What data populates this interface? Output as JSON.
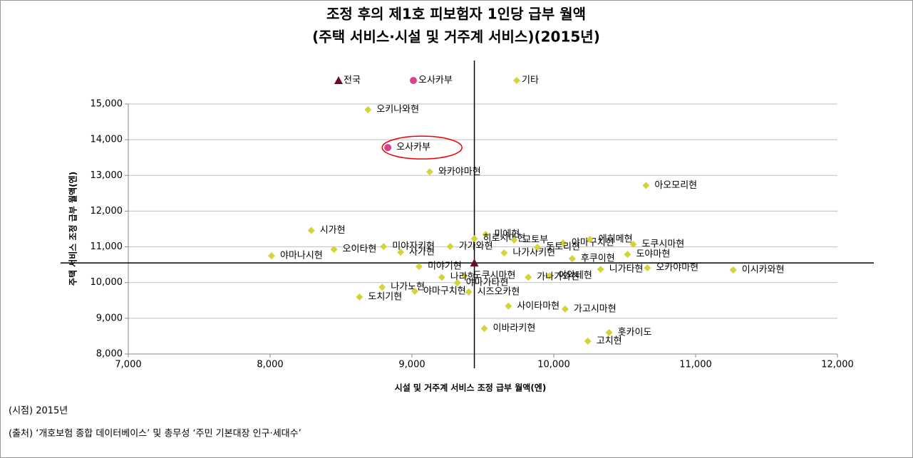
{
  "chart_data": {
    "type": "scatter",
    "title": [
      "조정 후의 제1호 피보험자 1인당 급부 월액",
      "(주택 서비스·시설 및 거주계 서비스)(2015년)"
    ],
    "x_label": "시설 및 거주계 서비스 조정 급부 월액(엔)",
    "y_label": "주택 서비스 조정 급부 월액(엔)",
    "xlim": [
      7000,
      12000
    ],
    "xticks": [
      {
        "value": 7000,
        "label": "7,000"
      },
      {
        "value": 8000,
        "label": "8,000"
      },
      {
        "value": 9000,
        "label": "9,000"
      },
      {
        "value": 10000,
        "label": "10,000"
      },
      {
        "value": 11000,
        "label": "11,000"
      },
      {
        "value": 12000,
        "label": "12,000"
      }
    ],
    "ylim": [
      8000,
      15000
    ],
    "yticks": [
      {
        "value": 8000,
        "label": "8,000"
      },
      {
        "value": 9000,
        "label": "9,000"
      },
      {
        "value": 10000,
        "label": "10,000"
      },
      {
        "value": 11000,
        "label": "11,000"
      },
      {
        "value": 12000,
        "label": "12,000"
      },
      {
        "value": 13000,
        "label": "13,000"
      },
      {
        "value": 14000,
        "label": "14,000"
      },
      {
        "value": 15000,
        "label": "15,000"
      }
    ],
    "grid": true,
    "legend": "top",
    "series": [
      {
        "name": "전국",
        "color": "#6b0a2e",
        "marker": "triangle",
        "x": [
          9440
        ],
        "values": [
          10550
        ],
        "labels": [
          "전국"
        ]
      },
      {
        "name": "오사카부",
        "color": "#d6428e",
        "marker": "circle",
        "x": [
          8830
        ],
        "values": [
          13780
        ],
        "labels": [
          "오사카부"
        ]
      },
      {
        "name": "기타",
        "color": "#d4d43a",
        "marker": "diamond",
        "x": [
          8690,
          9125,
          10650,
          8290,
          8010,
          8450,
          8800,
          8920,
          9270,
          9520,
          9440,
          9720,
          10065,
          10255,
          10560,
          10520,
          9650,
          9885,
          10130,
          10660,
          11265,
          10330,
          9050,
          9970,
          9820,
          9370,
          9210,
          9320,
          8790,
          9680,
          10080,
          9400,
          9020,
          8630,
          9510,
          10390,
          10240
        ],
        "values": [
          14840,
          13100,
          12720,
          11460,
          10750,
          10930,
          11010,
          10850,
          11010,
          11350,
          11230,
          11190,
          11110,
          11210,
          11070,
          10790,
          10830,
          10990,
          10670,
          10410,
          10350,
          10370,
          10450,
          10190,
          10150,
          10190,
          10150,
          9995,
          9870,
          9340,
          9260,
          9735,
          9755,
          9595,
          8715,
          8600,
          8360
        ],
        "labels": [
          "오키나와현",
          "와카야마현",
          "아오모리현",
          "시가현",
          "야마나시현",
          "오이타현",
          "미야자키현",
          "사가현",
          "가가와현",
          "미에현",
          "히로시마현",
          "교토부",
          "야마구치현",
          "에히메현",
          "도쿠시마현",
          "도야마현",
          "나가사키현",
          "돗토리현",
          "후쿠이현",
          "오카야마현",
          "이시카와현",
          "니가타현",
          "미야기현",
          "이와테현",
          "가나가와현",
          "도쿠시마현",
          "나라현",
          "야마가타현",
          "나가노현",
          "사이타마현",
          "가고시마현",
          "시즈오카현",
          "야마구치현",
          "도치기현",
          "이바라키현",
          "홋카이도",
          "고치현"
        ]
      }
    ],
    "notes": [
      "(시점) 2015년",
      "(출처) ‘개호보험 종합 데이터베이스’ 및 총무성 ‘주민 기본대장 인구·세대수’"
    ]
  }
}
